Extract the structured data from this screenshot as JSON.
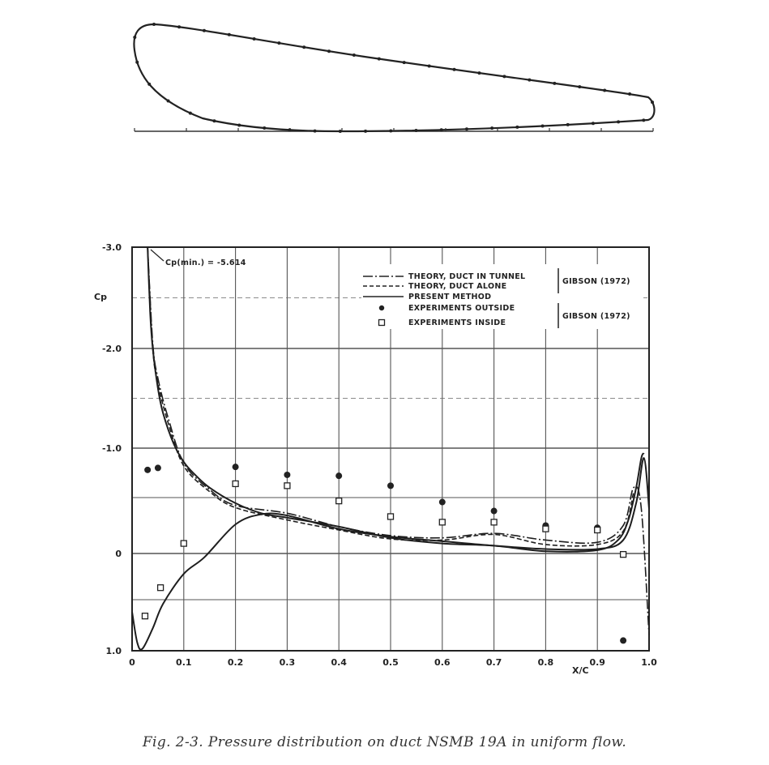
{
  "caption": "Fig. 2-3. Pressure distribution on duct NSMB 19A in uniform flow.",
  "chart_data": {
    "type": "line",
    "title": "",
    "xlabel": "X/C",
    "ylabel": "Cp",
    "xlim": [
      0,
      1.0
    ],
    "ylim": [
      -3.0,
      1.0
    ],
    "y_inverted": true,
    "y_scale": "piecewise: major gridlines at -3.0, -2.0, -1.0, 0, 1.0 with half-step gridlines",
    "x_ticks": [
      "0",
      "0.1",
      "0.2",
      "0.3",
      "0.4",
      "0.5",
      "0.6",
      "0.7",
      "0.8",
      "0.9",
      "1.0"
    ],
    "y_ticks": [
      "-3.0",
      "-2.0",
      "-1.0",
      "0",
      "1.0"
    ],
    "grid": true,
    "legend_position": "top-right",
    "annotation": "Cp(min.) = -5.614",
    "legend": [
      {
        "label": "THEORY, DUCT IN TUNNEL",
        "style": "dash-dot"
      },
      {
        "label": "THEORY, DUCT ALONE",
        "style": "dashed"
      },
      {
        "label": "PRESENT METHOD",
        "style": "solid"
      },
      {
        "label": "EXPERIMENTS OUTSIDE",
        "style": "filled-circle"
      },
      {
        "label": "EXPERIMENTS INSIDE",
        "style": "open-square"
      }
    ],
    "legend_source": "GIBSON (1972)",
    "series": [
      {
        "name": "PRESENT METHOD",
        "style": "solid",
        "x": [
          0.03,
          0.035,
          0.04,
          0.05,
          0.06,
          0.08,
          0.1,
          0.12,
          0.15,
          0.2,
          0.25,
          0.3,
          0.4,
          0.5,
          0.6,
          0.7,
          0.8,
          0.9,
          0.94,
          0.96,
          0.975,
          0.985,
          0.99
        ],
        "y": [
          -3.0,
          -2.35,
          -2.0,
          -1.6,
          -1.35,
          -1.05,
          -0.86,
          -0.74,
          -0.6,
          -0.45,
          -0.36,
          -0.32,
          -0.24,
          -0.14,
          -0.09,
          -0.07,
          -0.02,
          -0.03,
          -0.12,
          -0.3,
          -0.6,
          -0.9,
          -0.95
        ]
      },
      {
        "name": "PRESENT METHOD",
        "style": "solid",
        "x": [
          0.0,
          0.01,
          0.02,
          0.04,
          0.06,
          0.1,
          0.14,
          0.2,
          0.25,
          0.3,
          0.4,
          0.5,
          0.6,
          0.7,
          0.8,
          0.9,
          0.95,
          0.975,
          0.99,
          1.0
        ],
        "y": [
          0.62,
          0.92,
          0.98,
          0.78,
          0.54,
          0.22,
          0.04,
          -0.26,
          -0.35,
          -0.34,
          -0.22,
          -0.15,
          -0.11,
          -0.07,
          -0.04,
          -0.04,
          -0.12,
          -0.45,
          -0.9,
          -0.4
        ]
      },
      {
        "name": "THEORY, DUCT ALONE",
        "style": "dashed",
        "x": [
          0.03,
          0.04,
          0.05,
          0.07,
          0.1,
          0.15,
          0.2,
          0.3,
          0.4,
          0.5,
          0.6,
          0.7,
          0.8,
          0.9,
          0.95,
          0.97
        ],
        "y": [
          -3.0,
          -2.0,
          -1.65,
          -1.25,
          -0.82,
          -0.56,
          -0.41,
          -0.3,
          -0.21,
          -0.13,
          -0.12,
          -0.17,
          -0.08,
          -0.08,
          -0.2,
          -0.55
        ]
      },
      {
        "name": "THEORY, DUCT IN TUNNEL",
        "style": "dash-dot",
        "x": [
          0.03,
          0.04,
          0.05,
          0.07,
          0.1,
          0.15,
          0.2,
          0.3,
          0.4,
          0.5,
          0.6,
          0.7,
          0.8,
          0.9,
          0.95,
          0.97,
          0.985,
          1.0
        ],
        "y": [
          -3.0,
          -2.05,
          -1.7,
          -1.3,
          -0.85,
          -0.58,
          -0.43,
          -0.36,
          -0.24,
          -0.16,
          -0.14,
          -0.18,
          -0.12,
          -0.1,
          -0.25,
          -0.6,
          -0.4,
          0.85
        ]
      }
    ],
    "points_outside": {
      "x": [
        0.03,
        0.05,
        0.2,
        0.3,
        0.4,
        0.5,
        0.6,
        0.7,
        0.8,
        0.9,
        0.95
      ],
      "y": [
        -0.78,
        -0.8,
        -0.81,
        -0.73,
        -0.72,
        -0.62,
        -0.46,
        -0.38,
        -0.25,
        -0.23,
        0.9
      ]
    },
    "points_inside": {
      "x": [
        0.025,
        0.055,
        0.1,
        0.2,
        0.3,
        0.4,
        0.5,
        0.6,
        0.7,
        0.8,
        0.9,
        0.95
      ],
      "y": [
        0.66,
        0.37,
        -0.09,
        -0.64,
        -0.62,
        -0.47,
        -0.33,
        -0.28,
        -0.28,
        -0.22,
        -0.21,
        0.01
      ]
    }
  }
}
